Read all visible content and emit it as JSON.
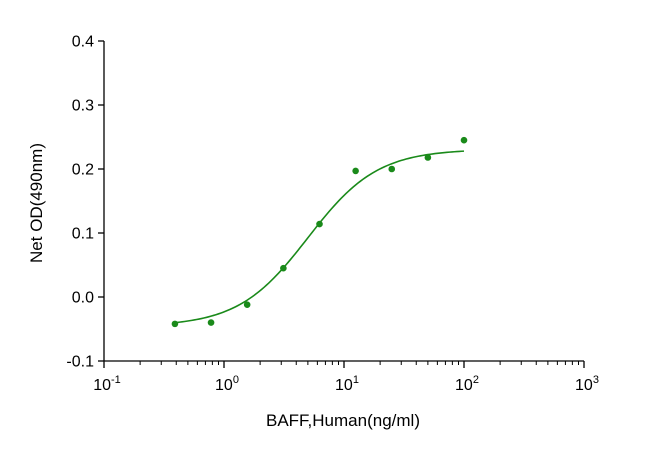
{
  "chart_data": {
    "type": "scatter",
    "x_scale": "log",
    "xlabel": "BAFF,Human(ng/ml)",
    "ylabel": "Net OD(490nm)",
    "xlim": [
      0.1,
      1000
    ],
    "ylim": [
      -0.1,
      0.4
    ],
    "x_ticks": [
      {
        "base": "10",
        "exp": "-1",
        "value": 0.1
      },
      {
        "base": "10",
        "exp": "0",
        "value": 1
      },
      {
        "base": "10",
        "exp": "1",
        "value": 10
      },
      {
        "base": "10",
        "exp": "2",
        "value": 100
      },
      {
        "base": "10",
        "exp": "3",
        "value": 1000
      }
    ],
    "y_ticks": [
      {
        "label": "-0.1",
        "value": -0.1
      },
      {
        "label": "0.0",
        "value": 0.0
      },
      {
        "label": "0.1",
        "value": 0.1
      },
      {
        "label": "0.2",
        "value": 0.2
      },
      {
        "label": "0.3",
        "value": 0.3
      },
      {
        "label": "0.4",
        "value": 0.4
      }
    ],
    "grid": false,
    "colors": {
      "series": "#1a8a1a",
      "axis": "#000000"
    },
    "series": [
      {
        "x": [
          0.39,
          0.78,
          1.56,
          3.125,
          6.25,
          12.5,
          25,
          50,
          100
        ],
        "y": [
          -0.042,
          -0.04,
          -0.012,
          0.045,
          0.114,
          0.197,
          0.2,
          0.218,
          0.245
        ],
        "fit": {
          "model": "4PL",
          "bottom": -0.046,
          "top": 0.231,
          "ec50": 5.0,
          "hill": 1.5
        }
      }
    ]
  }
}
